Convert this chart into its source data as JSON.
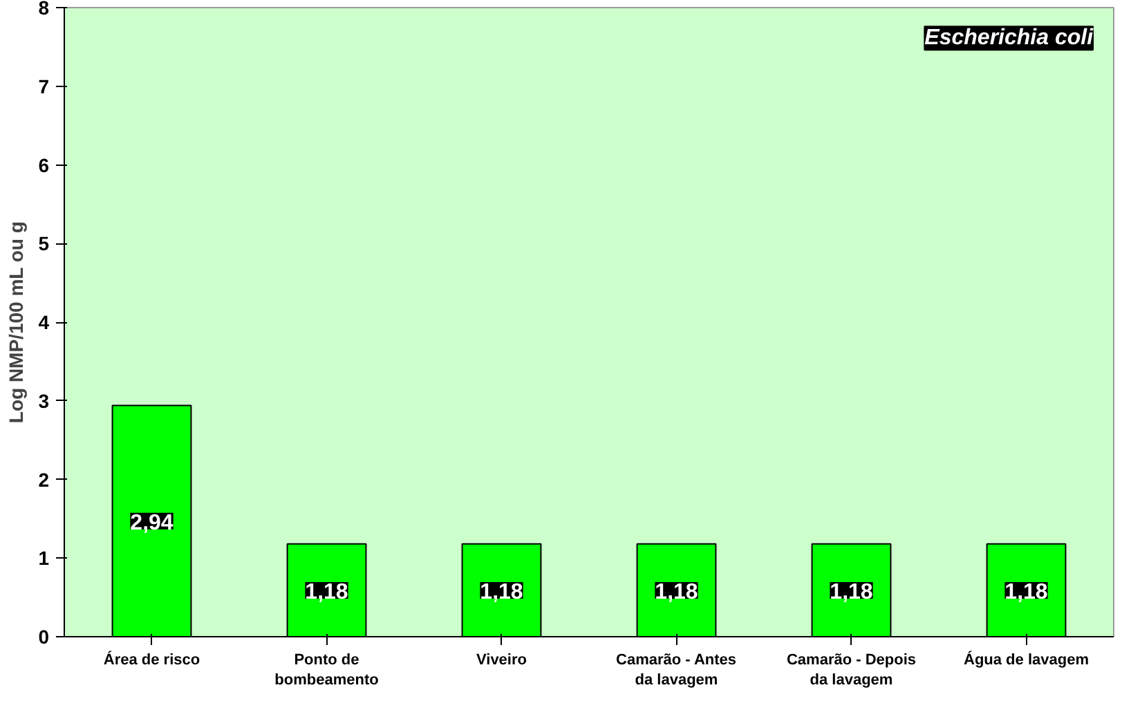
{
  "chart_data": {
    "type": "bar",
    "title": "Escherichia coli",
    "ylabel": "Log NMP/100 mL ou g",
    "categories": [
      "Área de risco",
      "Ponto de bombeamento",
      "Viveiro",
      "Camarão - Antes da lavagem",
      "Camarão - Depois da lavagem",
      "Água de lavagem"
    ],
    "values": [
      2.94,
      1.18,
      1.18,
      1.18,
      1.18,
      1.18
    ],
    "color": "#00ff00",
    "ylim": [
      0,
      8
    ],
    "yticks": [
      0,
      1,
      2,
      3,
      4,
      5,
      6,
      7,
      8
    ],
    "value_labels": [
      "2,94",
      "1,18",
      "1,18",
      "1,18",
      "1,18",
      "1,18"
    ],
    "grid": false
  }
}
